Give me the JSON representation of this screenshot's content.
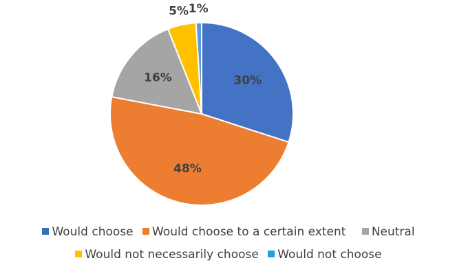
{
  "chart_data": {
    "type": "pie",
    "title": "",
    "slices": [
      {
        "name": "Would choose",
        "value": 30,
        "label": "30%",
        "color": "#4472C4"
      },
      {
        "name": "Would choose to a certain extent",
        "value": 48,
        "label": "48%",
        "color": "#ED7D31"
      },
      {
        "name": "Neutral",
        "value": 16,
        "label": "16%",
        "color": "#A5A5A5"
      },
      {
        "name": "Would not necessarily choose",
        "value": 5,
        "label": "5%",
        "color": "#FFC000"
      },
      {
        "name": "Would not choose",
        "value": 1,
        "label": "1%",
        "color": "#5B9BD5"
      }
    ],
    "legend_placement": "bottom"
  },
  "legend": {
    "items": [
      {
        "label": "Would choose",
        "color": "#2E75B6"
      },
      {
        "label": "Would choose to a certain extent",
        "color": "#ED7D31"
      },
      {
        "label": "Neutral",
        "color": "#A5A5A5"
      },
      {
        "label": "Would not necessarily choose",
        "color": "#FFC000"
      },
      {
        "label": "Would not choose",
        "color": "#1BA1E2"
      }
    ]
  }
}
